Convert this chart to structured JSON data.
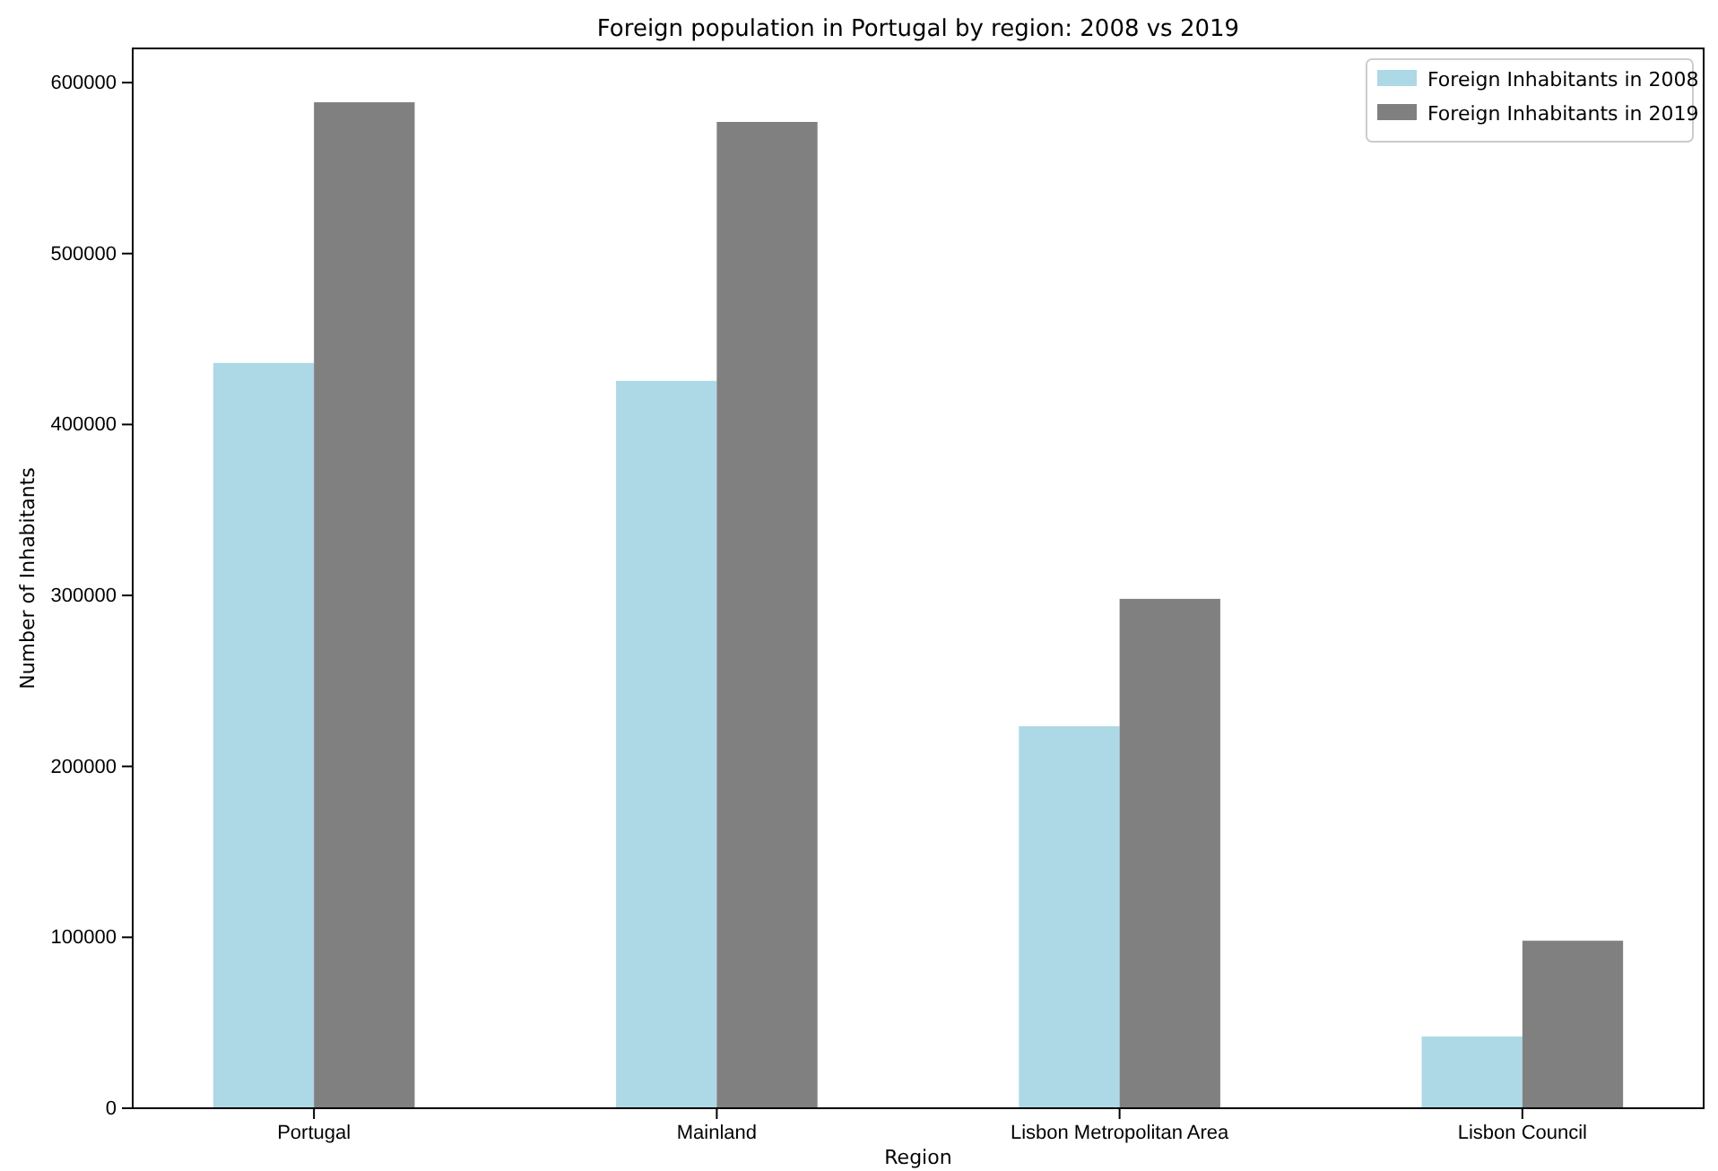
{
  "chart_data": {
    "type": "bar",
    "title": "Foreign population in Portugal by region: 2008 vs 2019",
    "xlabel": "Region",
    "ylabel": "Number of Inhabitants",
    "categories": [
      "Portugal",
      "Mainland",
      "Lisbon Metropolitan Area",
      "Lisbon Council"
    ],
    "series": [
      {
        "name": "Foreign Inhabitants in 2008",
        "color": "#add8e6",
        "values": [
          436000,
          425500,
          223500,
          42000
        ]
      },
      {
        "name": "Foreign Inhabitants in 2019",
        "color": "#808080",
        "values": [
          588500,
          577000,
          298000,
          98000
        ]
      }
    ],
    "ylim": [
      0,
      620000
    ],
    "yticks": [
      0,
      100000,
      200000,
      300000,
      400000,
      500000,
      600000
    ],
    "grid": false,
    "legend": "top right"
  }
}
